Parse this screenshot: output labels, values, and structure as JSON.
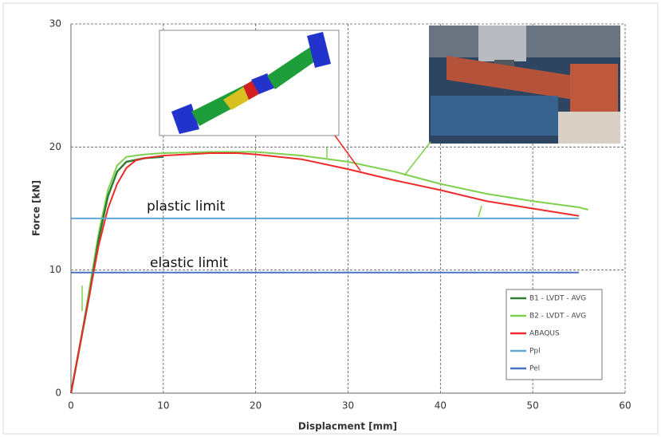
{
  "chart_data": {
    "type": "line",
    "xlabel": "Displacment [mm]",
    "ylabel": "Force [kN]",
    "xlim": [
      0,
      60
    ],
    "ylim": [
      0,
      30
    ],
    "xticks": [
      0,
      10,
      20,
      30,
      40,
      50,
      60
    ],
    "yticks": [
      0,
      10,
      20,
      30
    ],
    "grid": true,
    "annotations": [
      "plastic limit",
      "elastic limit"
    ],
    "series": [
      {
        "name": "B1 - LVDT - AVG",
        "color": "#2e7d32",
        "x": [
          0,
          2,
          3,
          4,
          5,
          6,
          8,
          10
        ],
        "values": [
          0,
          8,
          12.5,
          16,
          18,
          18.8,
          19.1,
          19.2
        ]
      },
      {
        "name": "B2 - LVDT - AVG",
        "color": "#7dd14f",
        "x": [
          0,
          1,
          2,
          3,
          4,
          5,
          6,
          8,
          10,
          15,
          20,
          25,
          30,
          35,
          40,
          45,
          50,
          55,
          56
        ],
        "values": [
          0,
          4,
          8.5,
          13,
          16.5,
          18.5,
          19.2,
          19.4,
          19.5,
          19.6,
          19.6,
          19.3,
          18.8,
          18,
          17,
          16.2,
          15.6,
          15.1,
          14.9
        ]
      },
      {
        "name": "ABAQUS",
        "color": "#ee2b2b",
        "x": [
          0,
          1,
          2,
          3,
          4,
          5,
          6,
          7,
          8,
          10,
          15,
          18,
          20,
          25,
          30,
          35,
          40,
          45,
          50,
          55
        ],
        "values": [
          0,
          4,
          8,
          12,
          15,
          17,
          18.3,
          18.9,
          19.1,
          19.3,
          19.5,
          19.5,
          19.4,
          19,
          18.2,
          17.3,
          16.5,
          15.6,
          15,
          14.4
        ]
      },
      {
        "name": "Ppl",
        "color": "#5fa8d3",
        "x": [
          0,
          55
        ],
        "values": [
          14.2,
          14.2
        ]
      },
      {
        "name": "Pel",
        "color": "#4a72c2",
        "x": [
          0,
          55
        ],
        "values": [
          9.8,
          9.8
        ]
      }
    ]
  }
}
